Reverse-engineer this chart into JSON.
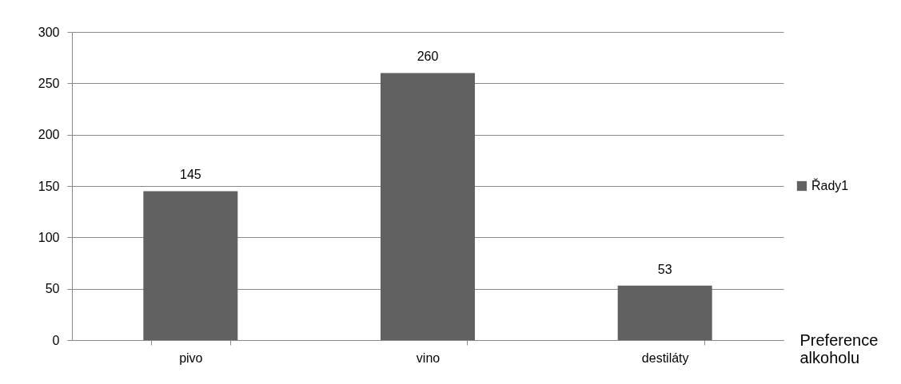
{
  "chart_data": {
    "type": "bar",
    "xlabel": "Preference alkoholu",
    "categories": [
      "pivo",
      "vino",
      "destiláty"
    ],
    "series": [
      {
        "name": "Řady1",
        "color": "#616161",
        "values": [
          145,
          260,
          53
        ]
      }
    ],
    "ylim": [
      0,
      300
    ],
    "yticks": [
      0,
      50,
      100,
      150,
      200,
      250,
      300
    ],
    "grid": "y",
    "legend": "right",
    "data_labels": true
  }
}
